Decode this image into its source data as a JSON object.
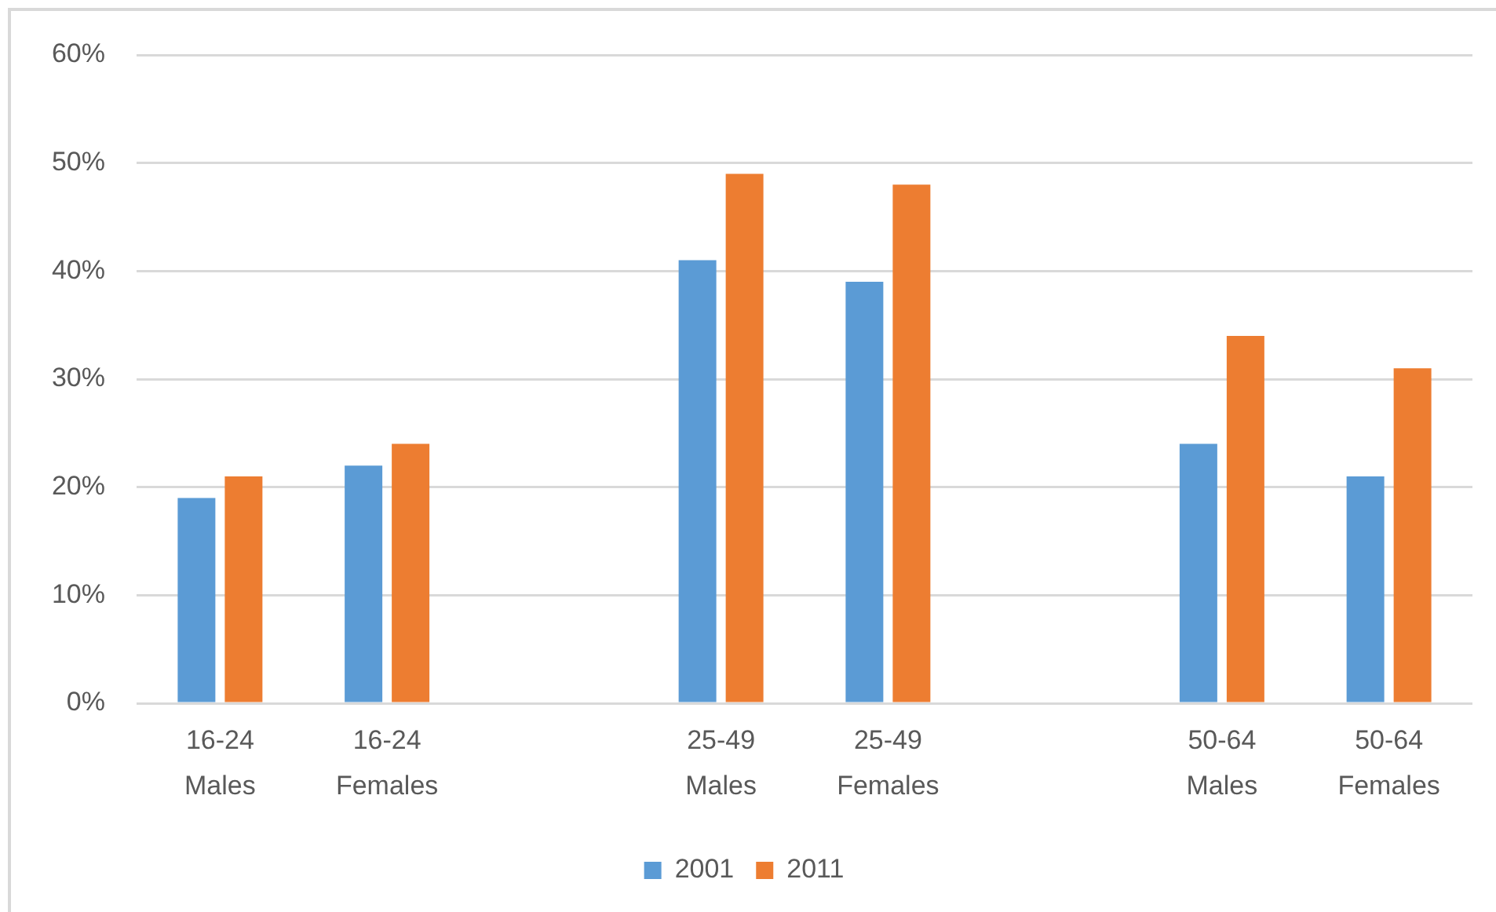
{
  "chart_data": {
    "type": "bar",
    "categories": [
      "16-24 Males",
      "16-24 Females",
      null,
      "25-49 Males",
      "25-49 Females",
      null,
      "50-64 Males",
      "50-64 Females"
    ],
    "series": [
      {
        "name": "2001",
        "color": "#5b9bd5",
        "values": [
          19,
          22,
          null,
          41,
          39,
          null,
          24,
          21
        ]
      },
      {
        "name": "2011",
        "color": "#ed7d31",
        "values": [
          21,
          24,
          null,
          49,
          48,
          null,
          34,
          31
        ]
      }
    ],
    "ylim": [
      0,
      60
    ],
    "yticks": [
      {
        "value": 0,
        "label": "0%"
      },
      {
        "value": 10,
        "label": "10%"
      },
      {
        "value": 20,
        "label": "20%"
      },
      {
        "value": 30,
        "label": "30%"
      },
      {
        "value": 40,
        "label": "40%"
      },
      {
        "value": 50,
        "label": "50%"
      },
      {
        "value": 60,
        "label": "60%"
      }
    ],
    "grid": "y",
    "legend": "bottom"
  }
}
